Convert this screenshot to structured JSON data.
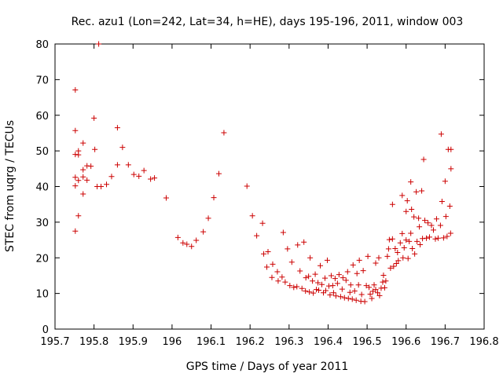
{
  "chart_data": {
    "type": "scatter",
    "title": "Rec. azu1 (Lon=242, Lat=34, h=HE), days 195-196, 2011, window 003",
    "xlabel": "GPS time / Days of year 2011",
    "ylabel": "STEC from uqrg / TECUs",
    "xlim": [
      195.7,
      196.8
    ],
    "ylim": [
      0,
      80
    ],
    "xticks": [
      195.7,
      195.8,
      195.9,
      196.0,
      196.1,
      196.2,
      196.3,
      196.4,
      196.5,
      196.6,
      196.7,
      196.8
    ],
    "xtick_labels": [
      "195.7",
      "195.8",
      "195.9",
      "196",
      "196.1",
      "196.2",
      "196.3",
      "196.4",
      "196.5",
      "196.6",
      "196.7",
      "196.8"
    ],
    "yticks": [
      0,
      10,
      20,
      30,
      40,
      50,
      60,
      70,
      80
    ],
    "ytick_labels": [
      "0",
      "10",
      "20",
      "30",
      "40",
      "50",
      "60",
      "70",
      "80"
    ],
    "marker": "+",
    "color": "#cc0000",
    "series": [
      {
        "name": "STEC",
        "points": [
          [
            195.752,
            67.1
          ],
          [
            195.752,
            55.7
          ],
          [
            195.752,
            49.0
          ],
          [
            195.752,
            42.6
          ],
          [
            195.752,
            40.2
          ],
          [
            195.752,
            27.5
          ],
          [
            195.76,
            50.0
          ],
          [
            195.76,
            48.9
          ],
          [
            195.76,
            41.7
          ],
          [
            195.76,
            31.8
          ],
          [
            195.772,
            52.2
          ],
          [
            195.772,
            44.7
          ],
          [
            195.772,
            42.7
          ],
          [
            195.772,
            37.9
          ],
          [
            195.782,
            45.8
          ],
          [
            195.782,
            41.8
          ],
          [
            195.792,
            45.7
          ],
          [
            195.8,
            59.2
          ],
          [
            195.802,
            50.4
          ],
          [
            195.808,
            40.0
          ],
          [
            195.812,
            80.0
          ],
          [
            195.818,
            40.0
          ],
          [
            195.832,
            40.6
          ],
          [
            195.845,
            42.8
          ],
          [
            195.86,
            56.5
          ],
          [
            195.86,
            46.1
          ],
          [
            195.873,
            51.0
          ],
          [
            195.888,
            46.1
          ],
          [
            195.902,
            43.4
          ],
          [
            195.915,
            42.9
          ],
          [
            195.928,
            44.5
          ],
          [
            195.945,
            42.1
          ],
          [
            195.955,
            42.4
          ],
          [
            195.985,
            36.8
          ],
          [
            196.015,
            25.7
          ],
          [
            196.028,
            24.2
          ],
          [
            196.038,
            23.8
          ],
          [
            196.05,
            23.2
          ],
          [
            196.062,
            24.9
          ],
          [
            196.08,
            27.3
          ],
          [
            196.093,
            31.1
          ],
          [
            196.107,
            36.9
          ],
          [
            196.12,
            43.6
          ],
          [
            196.133,
            55.1
          ],
          [
            196.192,
            40.1
          ],
          [
            196.206,
            31.8
          ],
          [
            196.217,
            26.2
          ],
          [
            196.232,
            29.7
          ],
          [
            196.235,
            21.1
          ],
          [
            196.246,
            21.7
          ],
          [
            196.243,
            17.4
          ],
          [
            196.258,
            18.2
          ],
          [
            196.256,
            14.5
          ],
          [
            196.27,
            16.1
          ],
          [
            196.272,
            13.5
          ],
          [
            196.282,
            14.6
          ],
          [
            196.285,
            27.1
          ],
          [
            196.29,
            13.2
          ],
          [
            196.296,
            22.5
          ],
          [
            196.302,
            12.2
          ],
          [
            196.307,
            18.8
          ],
          [
            196.312,
            11.7
          ],
          [
            196.32,
            11.9
          ],
          [
            196.322,
            23.6
          ],
          [
            196.328,
            16.3
          ],
          [
            196.333,
            11.4
          ],
          [
            196.338,
            24.4
          ],
          [
            196.342,
            10.7
          ],
          [
            196.343,
            14.4
          ],
          [
            196.35,
            14.8
          ],
          [
            196.352,
            10.4
          ],
          [
            196.354,
            20.0
          ],
          [
            196.36,
            13.5
          ],
          [
            196.362,
            10.1
          ],
          [
            196.367,
            15.4
          ],
          [
            196.37,
            11.1
          ],
          [
            196.374,
            13.0
          ],
          [
            196.376,
            10.9
          ],
          [
            196.38,
            17.8
          ],
          [
            196.384,
            12.5
          ],
          [
            196.388,
            10.2
          ],
          [
            196.392,
            14.3
          ],
          [
            196.394,
            10.8
          ],
          [
            196.398,
            19.3
          ],
          [
            196.402,
            12.1
          ],
          [
            196.405,
            9.6
          ],
          [
            196.408,
            15.0
          ],
          [
            196.412,
            12.2
          ],
          [
            196.414,
            10.2
          ],
          [
            196.418,
            14.2
          ],
          [
            196.42,
            9.3
          ],
          [
            196.424,
            12.8
          ],
          [
            196.428,
            15.3
          ],
          [
            196.432,
            9.1
          ],
          [
            196.436,
            11.2
          ],
          [
            196.438,
            14.4
          ],
          [
            196.442,
            8.8
          ],
          [
            196.446,
            13.7
          ],
          [
            196.45,
            16.1
          ],
          [
            196.452,
            8.6
          ],
          [
            196.456,
            10.3
          ],
          [
            196.458,
            12.4
          ],
          [
            196.462,
            8.4
          ],
          [
            196.464,
            18.0
          ],
          [
            196.468,
            10.7
          ],
          [
            196.472,
            8.1
          ],
          [
            196.474,
            15.6
          ],
          [
            196.478,
            12.4
          ],
          [
            196.48,
            19.3
          ],
          [
            196.484,
            7.8
          ],
          [
            196.486,
            9.7
          ],
          [
            196.49,
            16.4
          ],
          [
            196.494,
            7.7
          ],
          [
            196.498,
            12.2
          ],
          [
            196.502,
            20.4
          ],
          [
            196.505,
            11.7
          ],
          [
            196.508,
            9.8
          ],
          [
            196.512,
            8.6
          ],
          [
            196.515,
            10.6
          ],
          [
            196.518,
            12.4
          ],
          [
            196.522,
            11.1
          ],
          [
            196.522,
            18.5
          ],
          [
            196.527,
            10.2
          ],
          [
            196.53,
            20.0
          ],
          [
            196.532,
            9.4
          ],
          [
            196.536,
            11.5
          ],
          [
            196.54,
            13.2
          ],
          [
            196.542,
            15.1
          ],
          [
            196.545,
            11.6
          ],
          [
            196.548,
            13.5
          ],
          [
            196.552,
            20.4
          ],
          [
            196.555,
            22.5
          ],
          [
            196.557,
            25.1
          ],
          [
            196.56,
            17.1
          ],
          [
            196.565,
            35.0
          ],
          [
            196.565,
            25.3
          ],
          [
            196.568,
            17.6
          ],
          [
            196.572,
            22.6
          ],
          [
            196.575,
            18.4
          ],
          [
            196.578,
            21.5
          ],
          [
            196.58,
            19.2
          ],
          [
            196.585,
            24.2
          ],
          [
            196.59,
            37.5
          ],
          [
            196.59,
            26.8
          ],
          [
            196.592,
            20.0
          ],
          [
            196.595,
            22.8
          ],
          [
            196.6,
            33.0
          ],
          [
            196.6,
            25.0
          ],
          [
            196.603,
            36.0
          ],
          [
            196.605,
            19.8
          ],
          [
            196.608,
            24.6
          ],
          [
            196.612,
            41.3
          ],
          [
            196.612,
            26.9
          ],
          [
            196.614,
            33.6
          ],
          [
            196.616,
            22.6
          ],
          [
            196.62,
            31.5
          ],
          [
            196.622,
            21.1
          ],
          [
            196.626,
            38.5
          ],
          [
            196.628,
            24.6
          ],
          [
            196.632,
            31.1
          ],
          [
            196.634,
            28.7
          ],
          [
            196.636,
            23.7
          ],
          [
            196.64,
            38.8
          ],
          [
            196.642,
            25.4
          ],
          [
            196.645,
            47.6
          ],
          [
            196.648,
            30.5
          ],
          [
            196.652,
            25.5
          ],
          [
            196.656,
            29.8
          ],
          [
            196.66,
            25.8
          ],
          [
            196.665,
            29.1
          ],
          [
            196.67,
            27.8
          ],
          [
            196.675,
            25.3
          ],
          [
            196.678,
            30.9
          ],
          [
            196.682,
            25.5
          ],
          [
            196.688,
            29.1
          ],
          [
            196.69,
            54.7
          ],
          [
            196.692,
            35.8
          ],
          [
            196.696,
            25.6
          ],
          [
            196.7,
            41.5
          ],
          [
            196.702,
            31.6
          ],
          [
            196.705,
            26.0
          ],
          [
            196.708,
            50.4
          ],
          [
            196.712,
            34.5
          ],
          [
            196.714,
            26.9
          ],
          [
            196.715,
            50.4
          ],
          [
            196.715,
            45.0
          ]
        ]
      }
    ]
  }
}
